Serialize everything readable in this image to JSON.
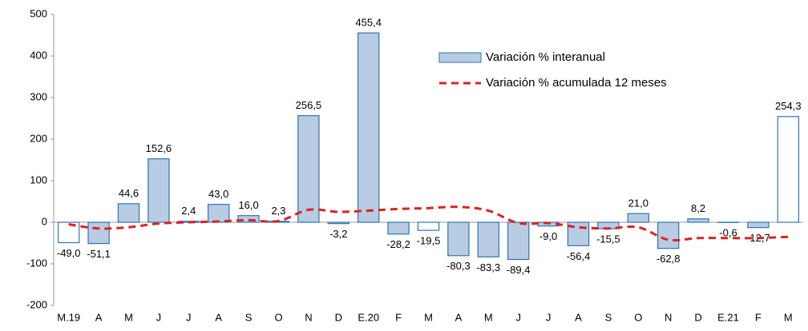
{
  "chart_data": {
    "type": "bar",
    "categories": [
      "M.19",
      "A",
      "M",
      "J",
      "J",
      "A",
      "S",
      "O",
      "N",
      "D",
      "E.20",
      "F",
      "M",
      "A",
      "M",
      "J",
      "J",
      "A",
      "S",
      "O",
      "N",
      "D",
      "E.21",
      "F",
      "M"
    ],
    "series": [
      {
        "name": "Variación % interanual",
        "type": "bar",
        "color": "#2e75b6",
        "fills": [
          "#ffffff",
          "#b8cce4",
          "#b8cce4",
          "#b8cce4",
          "#b8cce4",
          "#b8cce4",
          "#b8cce4",
          "#b8cce4",
          "#b8cce4",
          "#b8cce4",
          "#b8cce4",
          "#b8cce4",
          "#ffffff",
          "#b8cce4",
          "#b8cce4",
          "#b8cce4",
          "#b8cce4",
          "#b8cce4",
          "#b8cce4",
          "#b8cce4",
          "#b8cce4",
          "#b8cce4",
          "#b8cce4",
          "#b8cce4",
          "#ffffff"
        ],
        "values": [
          -49.0,
          -51.1,
          44.6,
          152.6,
          2.4,
          43.0,
          16.0,
          2.3,
          256.5,
          -3.2,
          455.4,
          -28.2,
          -19.5,
          -80.3,
          -83.3,
          -89.4,
          -9.0,
          -56.4,
          -15.5,
          21.0,
          -62.8,
          8.2,
          -0.6,
          -12.7,
          254.3
        ],
        "value_labels": [
          "-49,0",
          "-51,1",
          "44,6",
          "152,6",
          "2,4",
          "43,0",
          "16,0",
          "2,3",
          "256,5",
          "-3,2",
          "455,4",
          "-28,2",
          "-19,5",
          "-80,3",
          "-83,3",
          "-89,4",
          "-9,0",
          "-56,4",
          "-15,5",
          "21,0",
          "-62,8",
          "8,2",
          "-0,6",
          "-12,7",
          "254,3"
        ]
      },
      {
        "name": "Variación % acumulada 12 meses",
        "type": "line",
        "color": "#e02020",
        "dashed": true,
        "values": [
          -5,
          -15,
          -12,
          -3,
          0,
          2,
          5,
          3,
          30,
          25,
          28,
          32,
          34,
          37,
          28,
          -2,
          -2,
          -12,
          -15,
          -12,
          -42,
          -38,
          -38,
          -38,
          -35
        ]
      }
    ],
    "ylim": [
      -200,
      500
    ],
    "yticks": [
      -200,
      -100,
      0,
      100,
      200,
      300,
      400,
      500
    ],
    "grid": false
  }
}
